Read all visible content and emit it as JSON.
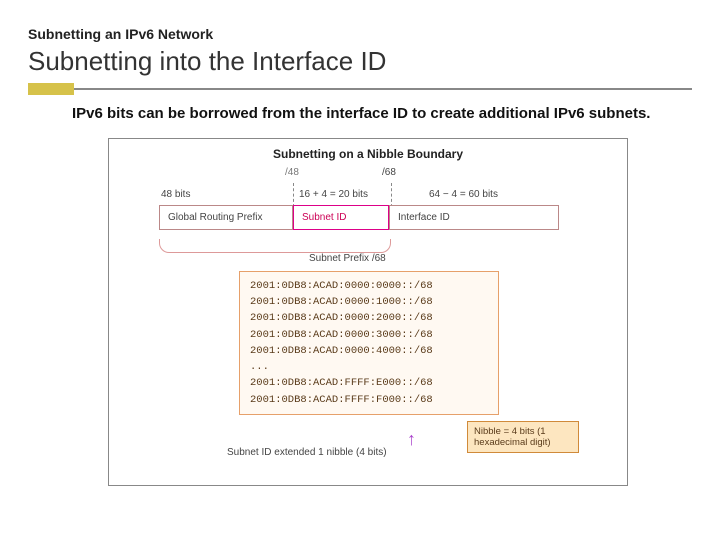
{
  "accent": "#d6c24a",
  "pretitle": "Subnetting an IPv6 Network",
  "title": "Subnetting into the Interface ID",
  "body": "IPv6 bits can be borrowed from the interface ID to create additional IPv6 subnets.",
  "figure": {
    "title": "Subnetting on a Nibble Boundary",
    "top_labels": {
      "left": "/48",
      "right": "/68"
    },
    "width_labels": {
      "left": "48 bits",
      "mid": "16 + 4 = 20 bits",
      "right": "64 − 4 = 60 bits"
    },
    "boxes": {
      "grp": "Global Routing Prefix",
      "sid": "Subnet ID",
      "iid": "Interface ID"
    },
    "subnet_prefix_label": "Subnet Prefix /68",
    "code_lines": [
      "2001:0DB8:ACAD:0000:0000::/68",
      "2001:0DB8:ACAD:0000:1000::/68",
      "2001:0DB8:ACAD:0000:2000::/68",
      "2001:0DB8:ACAD:0000:3000::/68",
      "2001:0DB8:ACAD:0000:4000::/68",
      "...",
      "2001:0DB8:ACAD:FFFF:E000::/68",
      "2001:0DB8:ACAD:FFFF:F000::/68"
    ],
    "caption": "Subnet ID extended 1 nibble (4 bits)",
    "nibble_note": "Nibble = 4 bits (1 hexadecimal digit)"
  }
}
